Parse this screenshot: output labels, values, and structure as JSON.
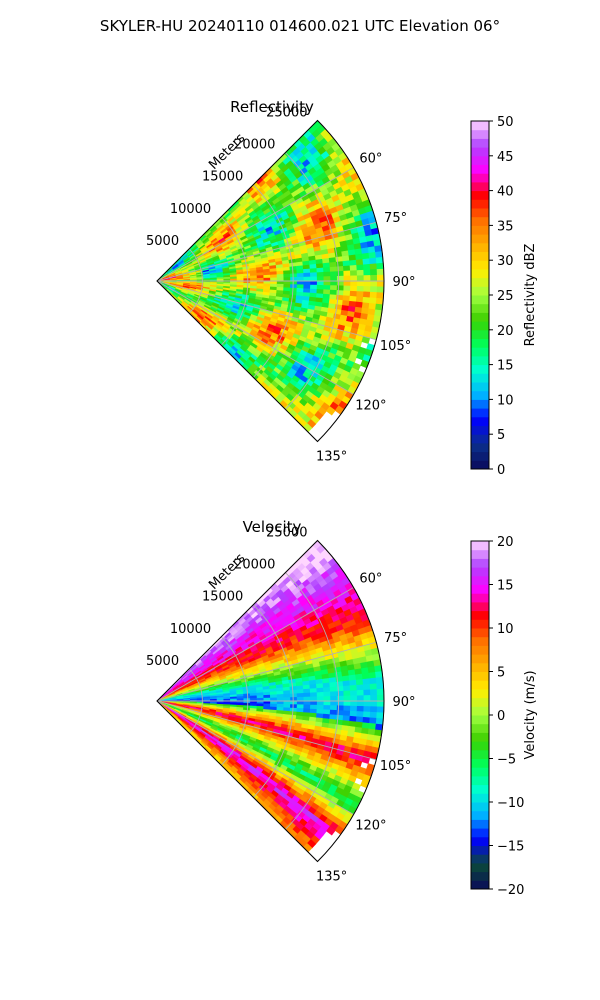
{
  "figure": {
    "title": "SKYLER-HU  20240110  014600.021 UTC Elevation 06°"
  },
  "chart_data": [
    {
      "type": "heatmap",
      "projection": "polar-sector",
      "title": "Reflectivity",
      "range_label": "Meters",
      "range_ticks": [
        "5000",
        "10000",
        "15000",
        "20000",
        "25000"
      ],
      "range_tick_values": [
        5000,
        10000,
        15000,
        20000,
        25000
      ],
      "range_max": 25000,
      "azimuth_ticks": [
        "60°",
        "75°",
        "90°",
        "105°",
        "120°",
        "135°"
      ],
      "azimuth_tick_values": [
        60,
        75,
        90,
        105,
        120,
        135
      ],
      "azimuth_range": [
        45,
        135
      ],
      "grid": true,
      "colorbar": {
        "label": "Reflectivity dBZ",
        "ticks": [
          "0",
          "5",
          "10",
          "15",
          "20",
          "25",
          "30",
          "35",
          "40",
          "45",
          "50"
        ],
        "range": [
          0,
          50
        ],
        "colors": [
          "#0a0a5a",
          "#0b2f8c",
          "#0000ff",
          "#00b4ff",
          "#00ffd0",
          "#00ff5a",
          "#3cd000",
          "#a0ff40",
          "#ffee00",
          "#ffb000",
          "#ff7000",
          "#ff0000",
          "#ff00ff",
          "#b040ff",
          "#ffd6ff"
        ]
      },
      "field_summary": {
        "typical_values": [
          25,
          35
        ],
        "maximum": 42,
        "pattern": "mostly yellow-orange with red bands"
      }
    },
    {
      "type": "heatmap",
      "projection": "polar-sector",
      "title": "Velocity",
      "range_label": "Meters",
      "range_ticks": [
        "5000",
        "10000",
        "15000",
        "20000",
        "25000"
      ],
      "range_tick_values": [
        5000,
        10000,
        15000,
        20000,
        25000
      ],
      "range_max": 25000,
      "azimuth_ticks": [
        "60°",
        "75°",
        "90°",
        "105°",
        "120°",
        "135°"
      ],
      "azimuth_tick_values": [
        60,
        75,
        90,
        105,
        120,
        135
      ],
      "azimuth_range": [
        45,
        135
      ],
      "grid": true,
      "colorbar": {
        "label": "Velocity (m/s)",
        "ticks": [
          "−20",
          "−15",
          "−10",
          "−5",
          "0",
          "5",
          "10",
          "15",
          "20"
        ],
        "range": [
          -20,
          20
        ],
        "colors": [
          "#0a0a5a",
          "#0b4a3a",
          "#0000ff",
          "#00b4ff",
          "#00ffd0",
          "#00ff5a",
          "#3cd000",
          "#a0ff40",
          "#ffee00",
          "#ffb000",
          "#ff7000",
          "#ff0000",
          "#ff00ff",
          "#b040ff",
          "#ffd6ff"
        ]
      },
      "field_summary": {
        "range_of_values": [
          -15,
          18
        ],
        "pattern": "banded: positive (red/magenta) near 60° and along lower edge, negative (cyan/green) near 85-100°"
      }
    }
  ]
}
